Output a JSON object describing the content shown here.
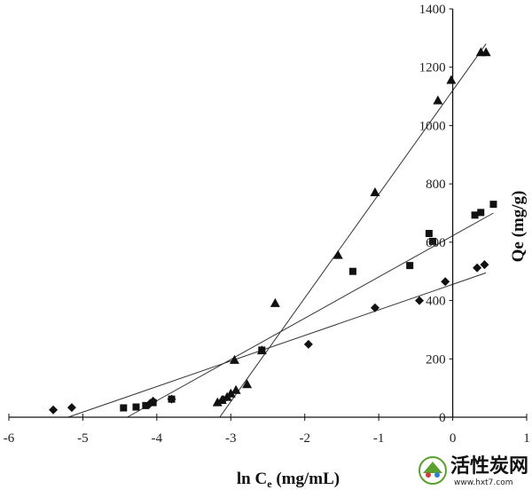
{
  "chart_data": {
    "type": "scatter",
    "xlabel": "ln C",
    "xlabel_sub": "e",
    "xlabel_unit": " (mg/mL)",
    "ylabel": "Qe (mg/g)",
    "xlim": [
      -6,
      1
    ],
    "ylim": [
      0,
      1400
    ],
    "xticks": [
      "-6",
      "-5",
      "-4",
      "-3",
      "-2",
      "-1",
      "0",
      "1"
    ],
    "yticks": [
      "0",
      "200",
      "400",
      "600",
      "800",
      "1000",
      "1200",
      "1400"
    ],
    "y_axis_position": "x=0",
    "grid": false,
    "legend": "none",
    "series": [
      {
        "marker": "diamond",
        "color": "#111111",
        "points": [
          [
            -5.4,
            25
          ],
          [
            -5.15,
            33
          ],
          [
            -4.1,
            45
          ],
          [
            -4.05,
            55
          ],
          [
            -3.8,
            62
          ],
          [
            -3.1,
            60
          ],
          [
            -1.95,
            250
          ],
          [
            -1.05,
            375
          ],
          [
            -0.45,
            400
          ],
          [
            -0.1,
            465
          ],
          [
            0.33,
            512
          ],
          [
            0.43,
            523
          ]
        ],
        "fit": [
          [
            -5.2,
            0
          ],
          [
            0.45,
            495
          ]
        ]
      },
      {
        "marker": "square",
        "color": "#111111",
        "points": [
          [
            -4.45,
            32
          ],
          [
            -4.28,
            35
          ],
          [
            -4.15,
            40
          ],
          [
            -4.05,
            50
          ],
          [
            -3.8,
            62
          ],
          [
            -2.58,
            230
          ],
          [
            -1.35,
            500
          ],
          [
            -0.58,
            520
          ],
          [
            -0.32,
            630
          ],
          [
            -0.27,
            603
          ],
          [
            0.3,
            693
          ],
          [
            0.38,
            702
          ],
          [
            0.55,
            730
          ]
        ],
        "fit": [
          [
            -4.4,
            0
          ],
          [
            0.55,
            700
          ]
        ]
      },
      {
        "marker": "triangle",
        "color": "#111111",
        "points": [
          [
            -3.18,
            50
          ],
          [
            -3.12,
            58
          ],
          [
            -3.05,
            68
          ],
          [
            -3.0,
            80
          ],
          [
            -2.93,
            92
          ],
          [
            -2.78,
            112
          ],
          [
            -2.95,
            195
          ],
          [
            -2.58,
            228
          ],
          [
            -2.4,
            390
          ],
          [
            -1.55,
            555
          ],
          [
            -1.05,
            770
          ],
          [
            -0.2,
            1085
          ],
          [
            -0.02,
            1155
          ],
          [
            0.38,
            1250
          ],
          [
            0.45,
            1250
          ]
        ],
        "fit": [
          [
            -3.15,
            0
          ],
          [
            0.45,
            1280
          ]
        ]
      }
    ]
  },
  "watermark": {
    "main": "活性炭网",
    "url": "www.hxt7.com"
  }
}
